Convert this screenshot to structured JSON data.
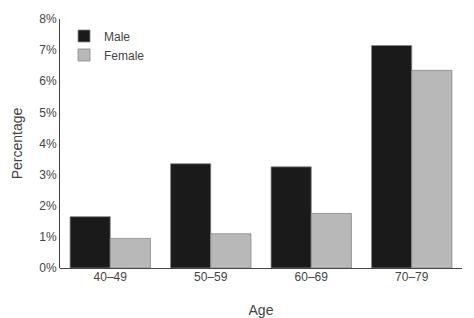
{
  "chart_data": {
    "type": "bar",
    "categories": [
      "40–49",
      "50–59",
      "60–69",
      "70–79"
    ],
    "series": [
      {
        "name": "Male",
        "color": "#1a1a1a",
        "values": [
          1.65,
          3.35,
          3.25,
          7.15
        ]
      },
      {
        "name": "Female",
        "color": "#b8b8b8",
        "values": [
          0.95,
          1.1,
          1.75,
          6.35
        ]
      }
    ],
    "xlabel": "Age",
    "ylabel": "Percentage",
    "ylim": [
      0,
      8
    ],
    "yticks": [
      {
        "value": 0,
        "label": "0%"
      },
      {
        "value": 1,
        "label": "1%"
      },
      {
        "value": 2,
        "label": "2%"
      },
      {
        "value": 3,
        "label": "3%"
      },
      {
        "value": 4,
        "label": "4%"
      },
      {
        "value": 5,
        "label": "5%"
      },
      {
        "value": 6,
        "label": "6%"
      },
      {
        "value": 7,
        "label": "7%"
      },
      {
        "value": 8,
        "label": "8%"
      }
    ],
    "legend": "upper left",
    "grid": false
  }
}
